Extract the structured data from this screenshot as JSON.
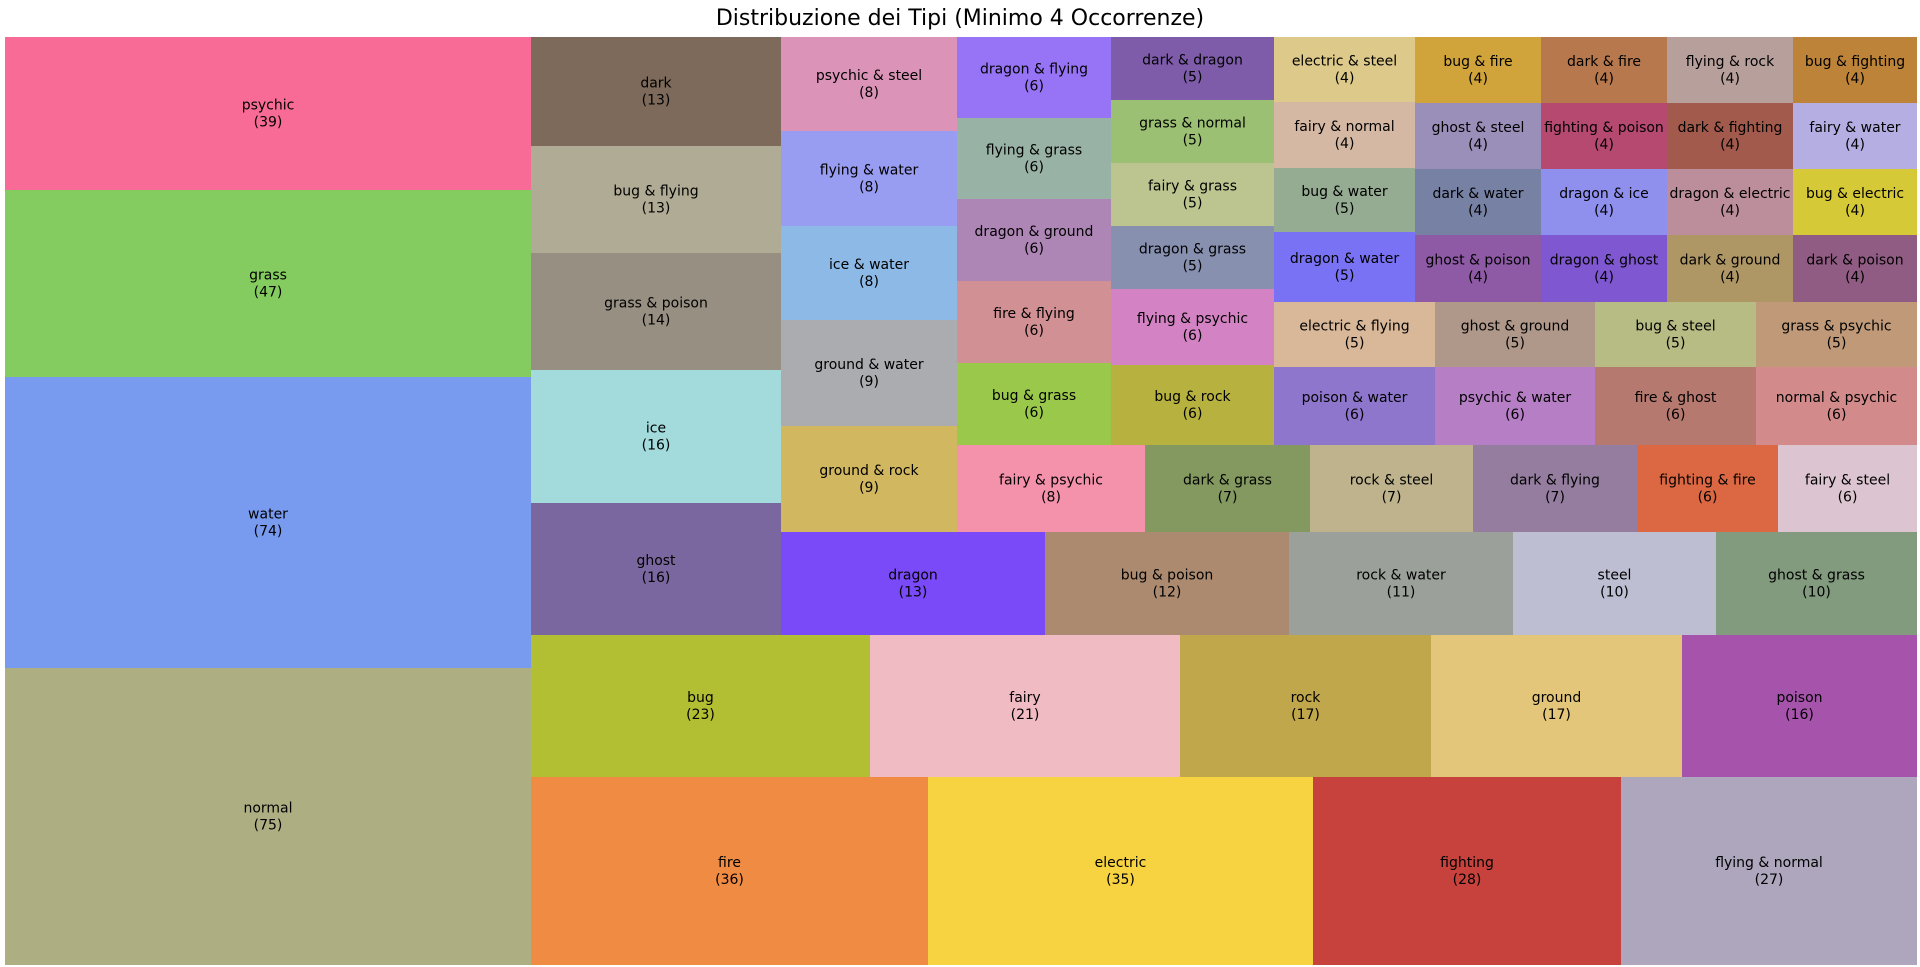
{
  "chart_data": {
    "type": "treemap",
    "title": "Distribuzione dei Tipi (Minimo 4 Occorrenze)",
    "items": [
      {
        "label": "normal",
        "value": 75,
        "color": "#ADAF83"
      },
      {
        "label": "water",
        "value": 74,
        "color": "#789BF0"
      },
      {
        "label": "grass",
        "value": 47,
        "color": "#85CC60"
      },
      {
        "label": "psychic",
        "value": 39,
        "color": "#F76B96"
      },
      {
        "label": "fire",
        "value": 36,
        "color": "#F08B43"
      },
      {
        "label": "electric",
        "value": 35,
        "color": "#F7D342"
      },
      {
        "label": "fighting",
        "value": 28,
        "color": "#C7423D"
      },
      {
        "label": "flying & normal",
        "value": 27,
        "color": "#ADA6BC"
      },
      {
        "label": "bug",
        "value": 23,
        "color": "#B3BF33"
      },
      {
        "label": "fairy",
        "value": 21,
        "color": "#F0BBC3"
      },
      {
        "label": "rock",
        "value": 17,
        "color": "#C0A74B"
      },
      {
        "label": "ground",
        "value": 17,
        "color": "#E3C67A"
      },
      {
        "label": "poison",
        "value": 16,
        "color": "#A653AB"
      },
      {
        "label": "dragon",
        "value": 13,
        "color": "#7B4AF8"
      },
      {
        "label": "bug & poison",
        "value": 12,
        "color": "#AB8A6F"
      },
      {
        "label": "rock & water",
        "value": 11,
        "color": "#9BA19A"
      },
      {
        "label": "steel",
        "value": 10,
        "color": "#BDBED2"
      },
      {
        "label": "ghost & grass",
        "value": 10,
        "color": "#829A7D"
      },
      {
        "label": "dark",
        "value": 13,
        "color": "#7D6A5B"
      },
      {
        "label": "bug & flying",
        "value": 13,
        "color": "#B0AB94"
      },
      {
        "label": "grass & poison",
        "value": 14,
        "color": "#978F82"
      },
      {
        "label": "ice",
        "value": 16,
        "color": "#A3DADB"
      },
      {
        "label": "ghost",
        "value": 16,
        "color": "#7B679F"
      },
      {
        "label": "psychic & steel",
        "value": 8,
        "color": "#DB94B8"
      },
      {
        "label": "flying & water",
        "value": 8,
        "color": "#999DF2"
      },
      {
        "label": "ice & water",
        "value": 8,
        "color": "#8DB9E6"
      },
      {
        "label": "ground & water",
        "value": 9,
        "color": "#ABACB0"
      },
      {
        "label": "ground & rock",
        "value": 9,
        "color": "#D1B75F"
      },
      {
        "label": "dragon & flying",
        "value": 6,
        "color": "#9773F6"
      },
      {
        "label": "flying & grass",
        "value": 6,
        "color": "#99B2A6"
      },
      {
        "label": "dragon & ground",
        "value": 6,
        "color": "#AE86B6"
      },
      {
        "label": "fire & flying",
        "value": 6,
        "color": "#D19093"
      },
      {
        "label": "bug & grass",
        "value": 6,
        "color": "#9AC84A"
      },
      {
        "label": "dark & dragon",
        "value": 5,
        "color": "#7E5CAA"
      },
      {
        "label": "grass & normal",
        "value": 5,
        "color": "#9CC073"
      },
      {
        "label": "fairy & grass",
        "value": 5,
        "color": "#BCC590"
      },
      {
        "label": "dragon & grass",
        "value": 5,
        "color": "#8790AF"
      },
      {
        "label": "flying & psychic",
        "value": 6,
        "color": "#D382C3"
      },
      {
        "label": "bug & rock",
        "value": 6,
        "color": "#B7B23F"
      },
      {
        "label": "electric & steel",
        "value": 4,
        "color": "#DDC989"
      },
      {
        "label": "fairy & normal",
        "value": 4,
        "color": "#D4B8A4"
      },
      {
        "label": "bug & water",
        "value": 5,
        "color": "#95AB92"
      },
      {
        "label": "dragon & water",
        "value": 5,
        "color": "#7A72F4"
      },
      {
        "label": "bug & fire",
        "value": 4,
        "color": "#D0A43B"
      },
      {
        "label": "dark & fire",
        "value": 4,
        "color": "#B7784E"
      },
      {
        "label": "flying & rock",
        "value": 4,
        "color": "#B7A09B"
      },
      {
        "label": "bug & fighting",
        "value": 4,
        "color": "#BD8338"
      },
      {
        "label": "ghost & steel",
        "value": 4,
        "color": "#9A8FB8"
      },
      {
        "label": "fighting & poison",
        "value": 4,
        "color": "#B54970"
      },
      {
        "label": "dark & fighting",
        "value": 4,
        "color": "#A25A4D"
      },
      {
        "label": "fairy & water",
        "value": 4,
        "color": "#B5AEE3"
      },
      {
        "label": "dark & water",
        "value": 4,
        "color": "#7681A3"
      },
      {
        "label": "dragon & ice",
        "value": 4,
        "color": "#8F90EE"
      },
      {
        "label": "dragon & electric",
        "value": 4,
        "color": "#BC8D9B"
      },
      {
        "label": "bug & electric",
        "value": 4,
        "color": "#D5C937"
      },
      {
        "label": "ghost & poison",
        "value": 4,
        "color": "#8E5AA6"
      },
      {
        "label": "dragon & ghost",
        "value": 4,
        "color": "#7F57D0"
      },
      {
        "label": "dark & ground",
        "value": 4,
        "color": "#AF9665"
      },
      {
        "label": "dark & poison",
        "value": 4,
        "color": "#915C83"
      },
      {
        "label": "electric & flying",
        "value": 5,
        "color": "#D8B899"
      },
      {
        "label": "ghost & ground",
        "value": 5,
        "color": "#AF988A"
      },
      {
        "label": "bug & steel",
        "value": 5,
        "color": "#B7BC84"
      },
      {
        "label": "grass & psychic",
        "value": 5,
        "color": "#C09A78"
      },
      {
        "label": "poison & water",
        "value": 6,
        "color": "#8D76CB"
      },
      {
        "label": "psychic & water",
        "value": 6,
        "color": "#B67EC5"
      },
      {
        "label": "fire & ghost",
        "value": 6,
        "color": "#B5796F"
      },
      {
        "label": "normal & psychic",
        "value": 6,
        "color": "#D38A8A"
      },
      {
        "label": "fairy & psychic",
        "value": 8,
        "color": "#F492AC"
      },
      {
        "label": "dark & grass",
        "value": 7,
        "color": "#83995F"
      },
      {
        "label": "rock & steel",
        "value": 7,
        "color": "#BEB38C"
      },
      {
        "label": "dark & flying",
        "value": 7,
        "color": "#947D9F"
      },
      {
        "label": "fighting & fire",
        "value": 6,
        "color": "#DC6843"
      },
      {
        "label": "fairy & steel",
        "value": 6,
        "color": "#DCC5D0"
      }
    ]
  }
}
